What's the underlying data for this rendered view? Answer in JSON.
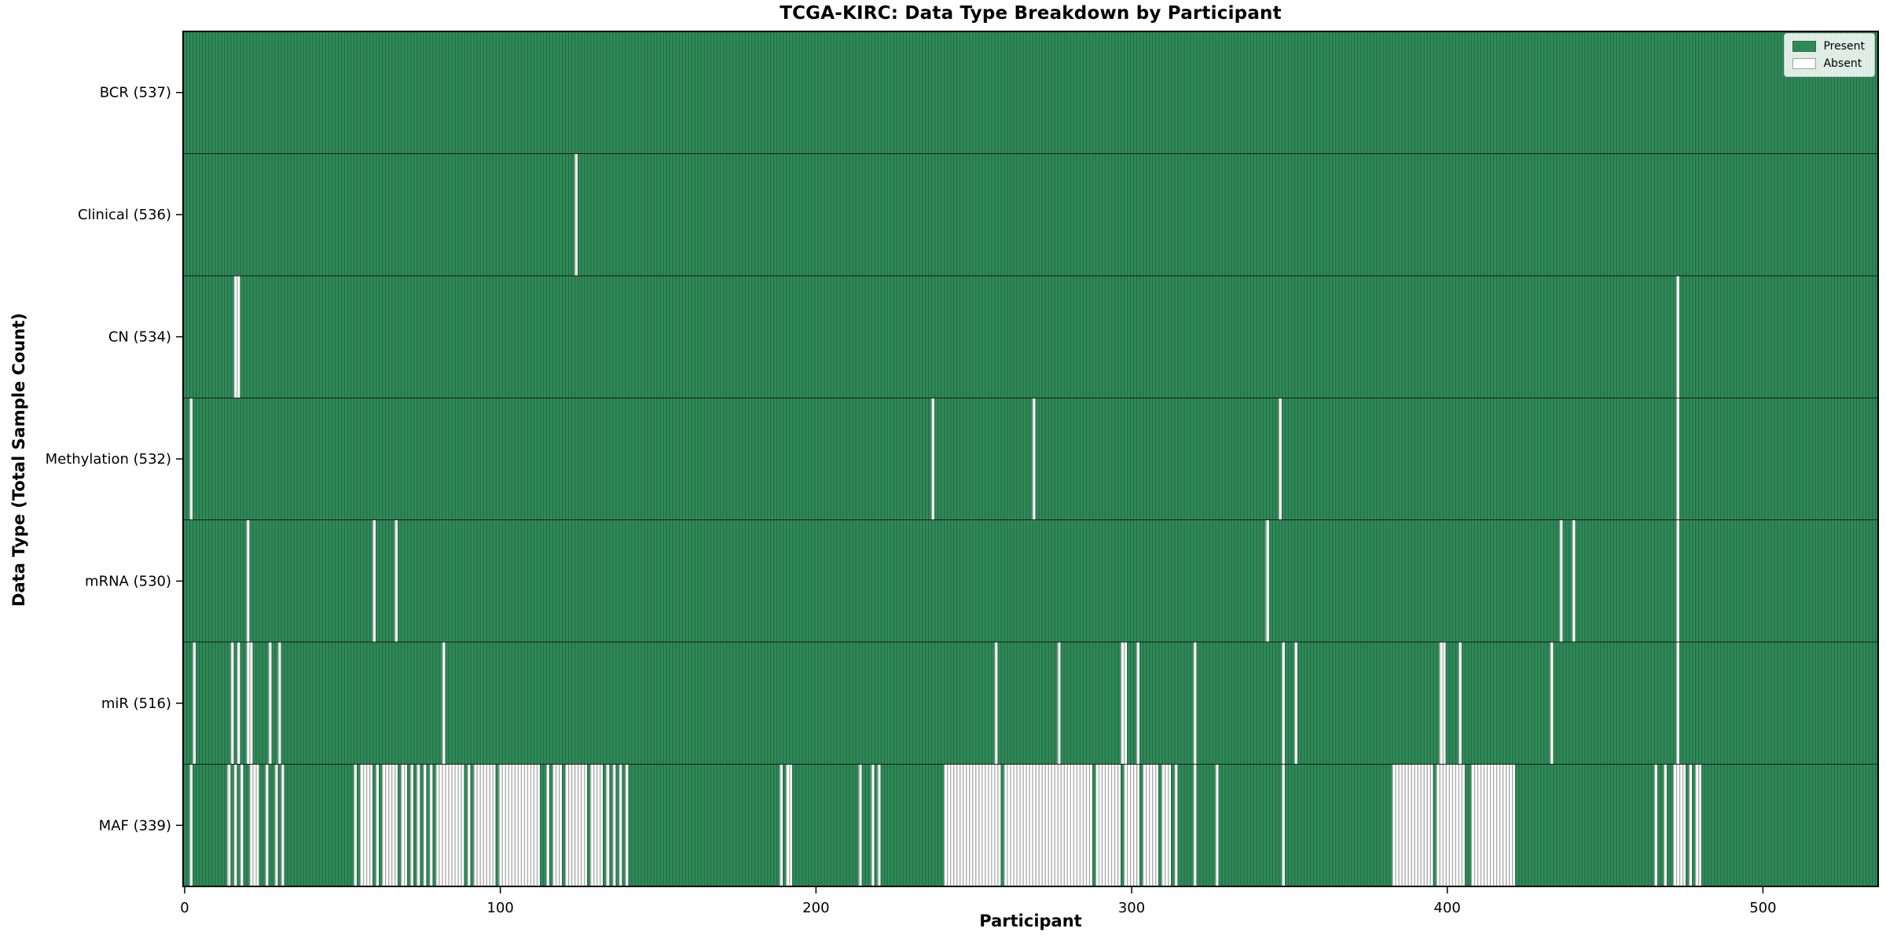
{
  "chart_data": {
    "type": "heatmap",
    "title": "TCGA-KIRC: Data Type Breakdown by Participant",
    "xlabel": "Participant",
    "ylabel": "Data Type (Total Sample Count)",
    "x_ticks": [
      0,
      100,
      200,
      300,
      400,
      500
    ],
    "x_range": [
      0,
      537
    ],
    "n_participants": 537,
    "grid": false,
    "legend": {
      "present_label": "Present",
      "absent_label": "Absent",
      "position": "upper right"
    },
    "colors": {
      "present": "#2e8b57",
      "present_edge": "#266b48",
      "absent": "#ffffff",
      "absent_edge": "#a0a0a0",
      "axis": "#000000",
      "separator": "#1a1a1a",
      "background": "#ffffff"
    },
    "rows": [
      {
        "data_type": "BCR",
        "label": "BCR (537)",
        "count": 537,
        "absent_runs": []
      },
      {
        "data_type": "Clinical",
        "label": "Clinical (536)",
        "count": 536,
        "absent_runs": [
          [
            124,
            124
          ]
        ]
      },
      {
        "data_type": "CN",
        "label": "CN (534)",
        "count": 534,
        "absent_runs": [
          [
            16,
            17
          ],
          [
            473,
            473
          ]
        ]
      },
      {
        "data_type": "Methylation",
        "label": "Methylation (532)",
        "count": 532,
        "absent_runs": [
          [
            2,
            2
          ],
          [
            237,
            237
          ],
          [
            269,
            269
          ],
          [
            347,
            347
          ],
          [
            473,
            473
          ]
        ]
      },
      {
        "data_type": "mRNA",
        "label": "mRNA (530)",
        "count": 530,
        "absent_runs": [
          [
            20,
            20
          ],
          [
            60,
            60
          ],
          [
            67,
            67
          ],
          [
            343,
            343
          ],
          [
            436,
            436
          ],
          [
            440,
            440
          ],
          [
            473,
            473
          ]
        ]
      },
      {
        "data_type": "miR",
        "label": "miR (516)",
        "count": 516,
        "absent_runs": [
          [
            3,
            3
          ],
          [
            15,
            15
          ],
          [
            17,
            17
          ],
          [
            20,
            21
          ],
          [
            27,
            27
          ],
          [
            30,
            30
          ],
          [
            82,
            82
          ],
          [
            257,
            257
          ],
          [
            277,
            277
          ],
          [
            297,
            298
          ],
          [
            302,
            302
          ],
          [
            320,
            320
          ],
          [
            348,
            348
          ],
          [
            352,
            352
          ],
          [
            398,
            399
          ],
          [
            404,
            404
          ],
          [
            433,
            433
          ],
          [
            473,
            473
          ]
        ]
      },
      {
        "data_type": "MAF",
        "label": "MAF (339)",
        "count": 339,
        "absent_runs": [
          [
            2,
            2
          ],
          [
            14,
            14
          ],
          [
            16,
            16
          ],
          [
            18,
            18
          ],
          [
            21,
            23
          ],
          [
            26,
            26
          ],
          [
            29,
            29
          ],
          [
            31,
            31
          ],
          [
            54,
            54
          ],
          [
            56,
            59
          ],
          [
            61,
            61
          ],
          [
            63,
            67
          ],
          [
            69,
            70
          ],
          [
            72,
            72
          ],
          [
            74,
            74
          ],
          [
            76,
            76
          ],
          [
            78,
            78
          ],
          [
            80,
            88
          ],
          [
            90,
            90
          ],
          [
            92,
            98
          ],
          [
            100,
            112
          ],
          [
            115,
            115
          ],
          [
            117,
            119
          ],
          [
            121,
            127
          ],
          [
            129,
            132
          ],
          [
            134,
            134
          ],
          [
            136,
            136
          ],
          [
            138,
            138
          ],
          [
            140,
            140
          ],
          [
            189,
            189
          ],
          [
            191,
            192
          ],
          [
            214,
            214
          ],
          [
            218,
            218
          ],
          [
            220,
            220
          ],
          [
            241,
            258
          ],
          [
            260,
            287
          ],
          [
            289,
            296
          ],
          [
            298,
            302
          ],
          [
            304,
            308
          ],
          [
            310,
            312
          ],
          [
            314,
            314
          ],
          [
            320,
            320
          ],
          [
            327,
            327
          ],
          [
            348,
            348
          ],
          [
            383,
            395
          ],
          [
            397,
            405
          ],
          [
            408,
            421
          ],
          [
            466,
            466
          ],
          [
            469,
            469
          ],
          [
            472,
            475
          ],
          [
            477,
            477
          ],
          [
            479,
            480
          ]
        ]
      }
    ]
  }
}
